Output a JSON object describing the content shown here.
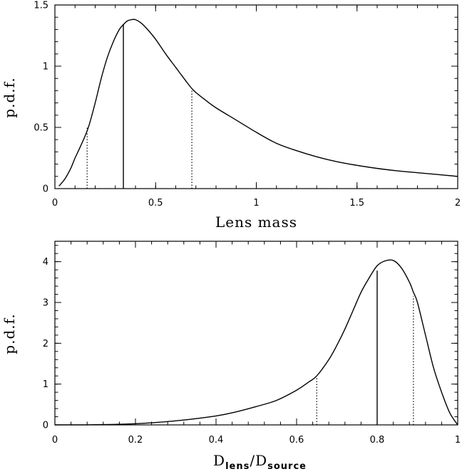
{
  "chart_data": [
    {
      "type": "line",
      "title": "",
      "xlabel": "Lens mass",
      "ylabel": "p.d.f.",
      "xlim": [
        0,
        2
      ],
      "ylim": [
        0,
        1.5
      ],
      "x_ticks": [
        0,
        0.5,
        1,
        1.5,
        2
      ],
      "x_tick_labels": [
        "0",
        "0.5",
        "1",
        "1.5",
        "2"
      ],
      "y_ticks": [
        0,
        0.5,
        1,
        1.5
      ],
      "y_tick_labels": [
        "0",
        "0.5",
        "1",
        "1.5"
      ],
      "series": [
        {
          "x": [
            0.02,
            0.05,
            0.08,
            0.1,
            0.12,
            0.15,
            0.17,
            0.2,
            0.23,
            0.26,
            0.29,
            0.32,
            0.34,
            0.36,
            0.38,
            0.4,
            0.43,
            0.46,
            0.5,
            0.55,
            0.6,
            0.65,
            0.69,
            0.75,
            0.8,
            0.9,
            1.0,
            1.1,
            1.2,
            1.3,
            1.4,
            1.5,
            1.6,
            1.7,
            1.8,
            1.9,
            2.0
          ],
          "y": [
            0.02,
            0.08,
            0.17,
            0.25,
            0.32,
            0.43,
            0.52,
            0.7,
            0.9,
            1.07,
            1.2,
            1.3,
            1.34,
            1.37,
            1.38,
            1.38,
            1.35,
            1.3,
            1.22,
            1.1,
            0.99,
            0.88,
            0.8,
            0.72,
            0.66,
            0.56,
            0.46,
            0.37,
            0.31,
            0.26,
            0.22,
            0.19,
            0.165,
            0.145,
            0.13,
            0.115,
            0.1
          ]
        }
      ],
      "vertical_lines": [
        {
          "x": 0.34,
          "y": 1.34,
          "style": "solid"
        },
        {
          "x": 0.16,
          "y": 0.5,
          "style": "dotted"
        },
        {
          "x": 0.68,
          "y": 0.82,
          "style": "dotted"
        }
      ],
      "grid": false
    },
    {
      "type": "line",
      "title": "",
      "xlabel": "D_lens/D_source",
      "xlabel_main_1": "D",
      "xlabel_sub_1": "lens",
      "xlabel_sep": "/",
      "xlabel_main_2": "D",
      "xlabel_sub_2": "source",
      "ylabel": "p.d.f.",
      "xlim": [
        0,
        1
      ],
      "ylim": [
        0,
        4.5
      ],
      "x_ticks": [
        0,
        0.2,
        0.4,
        0.6,
        0.8,
        1
      ],
      "x_tick_labels": [
        "0",
        "0.2",
        "0.4",
        "0.6",
        "0.8",
        "1"
      ],
      "y_ticks": [
        0,
        1,
        2,
        3,
        4
      ],
      "y_tick_labels": [
        "0",
        "1",
        "2",
        "3",
        "4"
      ],
      "series": [
        {
          "x": [
            0.0,
            0.1,
            0.2,
            0.3,
            0.4,
            0.45,
            0.5,
            0.55,
            0.6,
            0.63,
            0.65,
            0.68,
            0.7,
            0.72,
            0.74,
            0.76,
            0.78,
            0.8,
            0.82,
            0.84,
            0.86,
            0.88,
            0.89,
            0.9,
            0.92,
            0.94,
            0.96,
            0.98,
            1.0
          ],
          "y": [
            0.0,
            0.005,
            0.03,
            0.1,
            0.22,
            0.32,
            0.45,
            0.6,
            0.85,
            1.05,
            1.2,
            1.6,
            1.95,
            2.35,
            2.8,
            3.25,
            3.6,
            3.9,
            4.02,
            4.03,
            3.85,
            3.5,
            3.25,
            3.0,
            2.2,
            1.4,
            0.8,
            0.3,
            0.0
          ]
        }
      ],
      "vertical_lines": [
        {
          "x": 0.8,
          "y": 3.78,
          "style": "solid"
        },
        {
          "x": 0.65,
          "y": 1.17,
          "style": "dotted"
        },
        {
          "x": 0.89,
          "y": 3.15,
          "style": "dotted"
        }
      ],
      "grid": false
    }
  ]
}
